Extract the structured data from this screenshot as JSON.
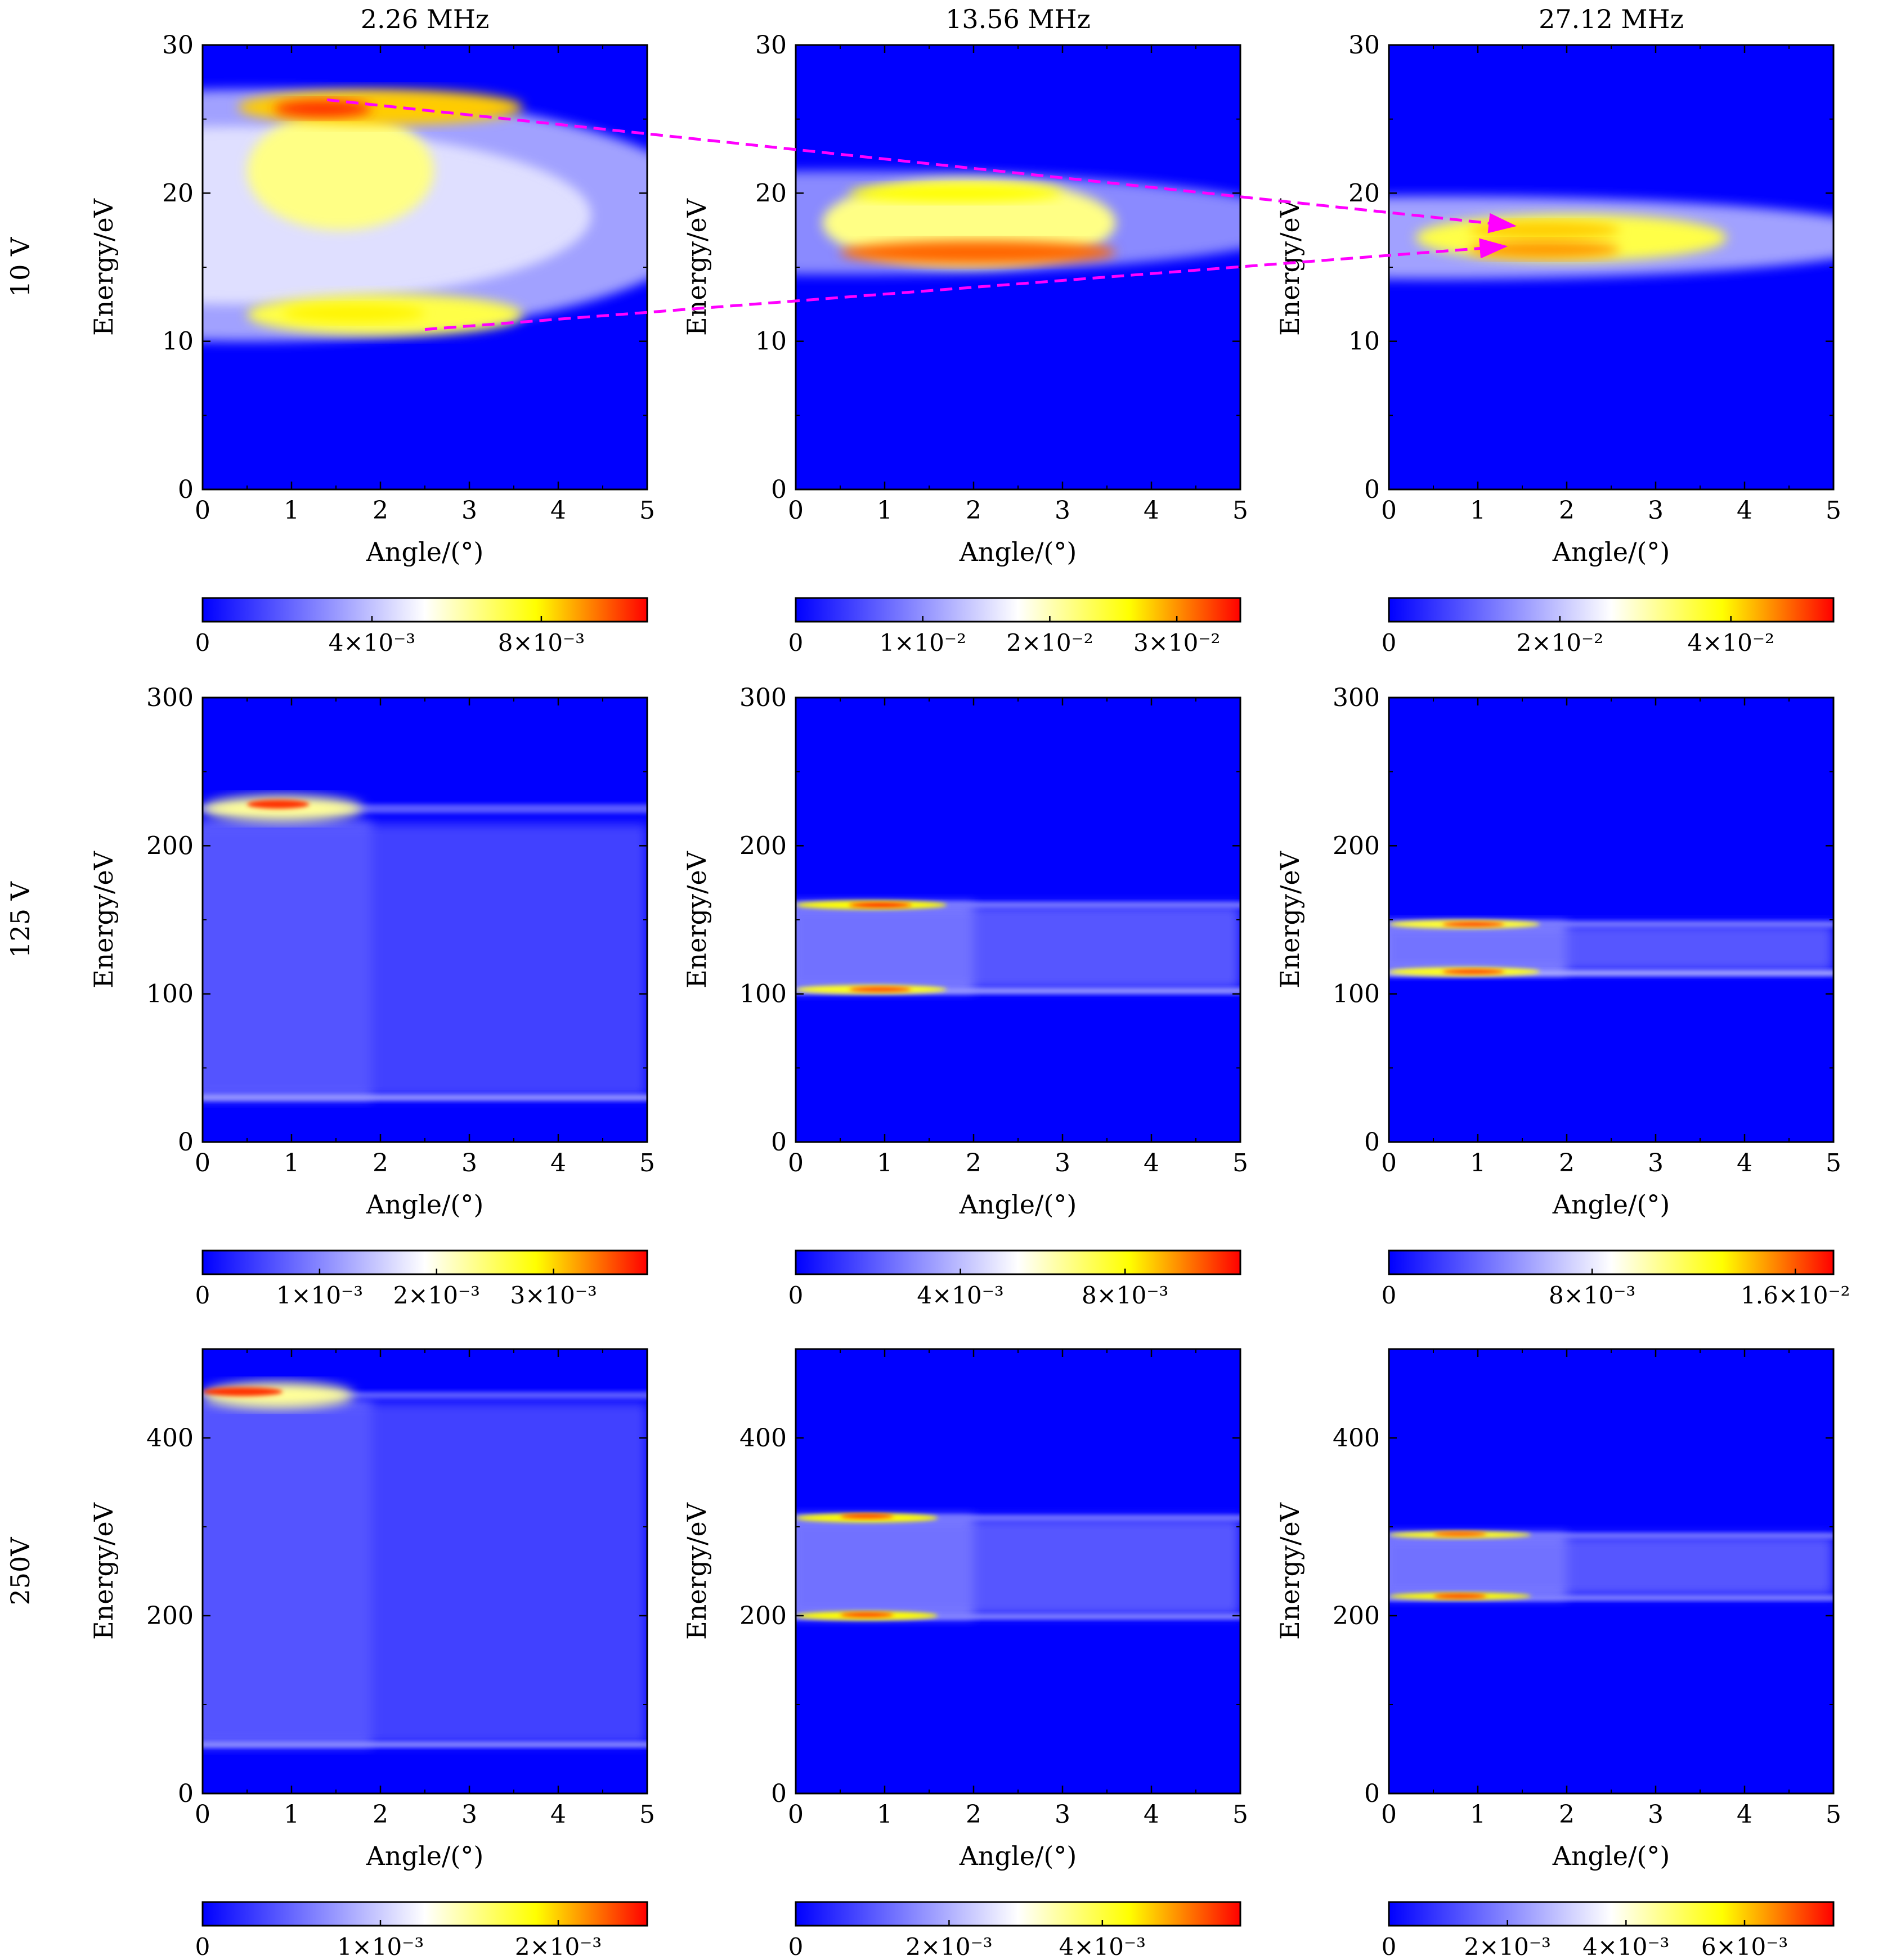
{
  "columns": [
    "2.26 MHz",
    "13.56 MHz",
    "27.12 MHz"
  ],
  "rows": [
    "10 V",
    "125 V",
    "250V"
  ],
  "colors": {
    "low": "#0000ff",
    "mid": "#ffffff",
    "high_mid": "#ffff00",
    "high": "#ff0000",
    "arrow": "#ff00ff"
  },
  "chart_data": [
    {
      "type": "heatmap",
      "title": "2.26 MHz",
      "xlabel": "Angle/(°)",
      "ylabel": "Energy/eV",
      "xlim": [
        0,
        5
      ],
      "ylim": [
        0,
        30
      ],
      "xticks": [
        "0",
        "1",
        "2",
        "3",
        "4",
        "5"
      ],
      "yticks": [
        "0",
        "10",
        "20",
        "30"
      ],
      "colorbar": {
        "max": 0.0105,
        "ticks": [
          {
            "v": 0,
            "label": "0"
          },
          {
            "v": 0.004,
            "label": "4×10⁻³"
          },
          {
            "v": 0.008,
            "label": "8×10⁻³"
          }
        ]
      },
      "features": [
        {
          "kind": "halo",
          "y": 18.5,
          "y_half": 8.5,
          "x_extent": 5.0,
          "level": 0.35
        },
        {
          "kind": "halo",
          "y": 18.5,
          "y_half": 6.0,
          "x_extent": 3.8,
          "level": 0.45
        },
        {
          "kind": "blob",
          "x0": 0.5,
          "x1": 2.6,
          "y": 21.5,
          "y_half": 4.0,
          "level": 0.62
        },
        {
          "kind": "blob",
          "x0": 0.4,
          "x1": 3.6,
          "y": 25.8,
          "y_half": 1.2,
          "level": 0.8
        },
        {
          "kind": "blob",
          "x0": 0.8,
          "x1": 1.9,
          "y": 25.7,
          "y_half": 0.6,
          "level": 0.95
        },
        {
          "kind": "blob",
          "x0": 0.5,
          "x1": 3.6,
          "y": 11.8,
          "y_half": 1.4,
          "level": 0.68
        },
        {
          "kind": "blob",
          "x0": 0.9,
          "x1": 2.5,
          "y": 11.9,
          "y_half": 0.6,
          "level": 0.76
        }
      ]
    },
    {
      "type": "heatmap",
      "title": "13.56 MHz",
      "xlabel": "Angle/(°)",
      "ylabel": "Energy/eV",
      "xlim": [
        0,
        5
      ],
      "ylim": [
        0,
        30
      ],
      "xticks": [
        "0",
        "1",
        "2",
        "3",
        "4",
        "5"
      ],
      "yticks": [
        "0",
        "10",
        "20",
        "30"
      ],
      "colorbar": {
        "max": 0.035,
        "ticks": [
          {
            "v": 0,
            "label": "0"
          },
          {
            "v": 0.01,
            "label": "1×10⁻²"
          },
          {
            "v": 0.02,
            "label": "2×10⁻²"
          },
          {
            "v": 0.03,
            "label": "3×10⁻²"
          }
        ]
      },
      "features": [
        {
          "kind": "halo",
          "y": 18.0,
          "y_half": 3.5,
          "x_extent": 5.0,
          "level": 0.3
        },
        {
          "kind": "blob",
          "x0": 0.3,
          "x1": 3.6,
          "y": 18.0,
          "y_half": 3.0,
          "level": 0.62
        },
        {
          "kind": "blob",
          "x0": 0.6,
          "x1": 3.0,
          "y": 20.0,
          "y_half": 0.6,
          "level": 0.75
        },
        {
          "kind": "blob",
          "x0": 0.5,
          "x1": 3.6,
          "y": 16.0,
          "y_half": 0.8,
          "level": 0.9
        }
      ]
    },
    {
      "type": "heatmap",
      "title": "27.12 MHz",
      "xlabel": "Angle/(°)",
      "ylabel": "Energy/eV",
      "xlim": [
        0,
        5
      ],
      "ylim": [
        0,
        30
      ],
      "xticks": [
        "0",
        "1",
        "2",
        "3",
        "4",
        "5"
      ],
      "yticks": [
        "0",
        "10",
        "20",
        "30"
      ],
      "colorbar": {
        "max": 0.052,
        "ticks": [
          {
            "v": 0,
            "label": "0"
          },
          {
            "v": 0.02,
            "label": "2×10⁻²"
          },
          {
            "v": 0.04,
            "label": "4×10⁻²"
          }
        ]
      },
      "features": [
        {
          "kind": "halo",
          "y": 17.0,
          "y_half": 2.8,
          "x_extent": 5.0,
          "level": 0.35
        },
        {
          "kind": "blob",
          "x0": 0.3,
          "x1": 3.8,
          "y": 17.0,
          "y_half": 1.6,
          "level": 0.68
        },
        {
          "kind": "blob",
          "x0": 0.9,
          "x1": 2.6,
          "y": 17.5,
          "y_half": 0.6,
          "level": 0.8
        },
        {
          "kind": "blob",
          "x0": 0.9,
          "x1": 2.6,
          "y": 16.2,
          "y_half": 0.6,
          "level": 0.85
        }
      ]
    },
    {
      "type": "heatmap",
      "title": "",
      "xlabel": "Angle/(°)",
      "ylabel": "Energy/eV",
      "xlim": [
        0,
        5
      ],
      "ylim": [
        0,
        300
      ],
      "xticks": [
        "0",
        "1",
        "2",
        "3",
        "4",
        "5"
      ],
      "yticks": [
        "0",
        "100",
        "200",
        "300"
      ],
      "colorbar": {
        "max": 0.0038,
        "ticks": [
          {
            "v": 0,
            "label": "0"
          },
          {
            "v": 0.001,
            "label": "1×10⁻³"
          },
          {
            "v": 0.002,
            "label": "2×10⁻³"
          },
          {
            "v": 0.003,
            "label": "3×10⁻³"
          }
        ]
      },
      "features": [
        {
          "kind": "band",
          "y0": 30,
          "y1": 215,
          "x_extent": 1.9,
          "level": 0.3
        },
        {
          "kind": "band",
          "y0": 30,
          "y1": 215,
          "x_extent": 5.0,
          "level": 0.15
        },
        {
          "kind": "line",
          "y": 30,
          "y_half": 2,
          "x_extent": 5.0,
          "level": 0.32
        },
        {
          "kind": "line",
          "y": 225,
          "y_half": 3,
          "x_extent": 5.0,
          "level": 0.2
        },
        {
          "kind": "blob",
          "x0": 0.0,
          "x1": 1.8,
          "y": 225,
          "y_half": 9,
          "level": 0.6
        },
        {
          "kind": "blob",
          "x0": 0.5,
          "x1": 1.2,
          "y": 228,
          "y_half": 3,
          "level": 0.95
        }
      ]
    },
    {
      "type": "heatmap",
      "title": "",
      "xlabel": "Angle/(°)",
      "ylabel": "Energy/eV",
      "xlim": [
        0,
        5
      ],
      "ylim": [
        0,
        300
      ],
      "xticks": [
        "0",
        "1",
        "2",
        "3",
        "4",
        "5"
      ],
      "yticks": [
        "0",
        "100",
        "200",
        "300"
      ],
      "colorbar": {
        "max": 0.0108,
        "ticks": [
          {
            "v": 0,
            "label": "0"
          },
          {
            "v": 0.004,
            "label": "4×10⁻³"
          },
          {
            "v": 0.008,
            "label": "8×10⁻³"
          }
        ]
      },
      "features": [
        {
          "kind": "band",
          "y0": 103,
          "y1": 160,
          "x_extent": 2.0,
          "level": 0.42
        },
        {
          "kind": "band",
          "y0": 103,
          "y1": 160,
          "x_extent": 5.0,
          "level": 0.2
        },
        {
          "kind": "line",
          "y": 160,
          "y_half": 2,
          "x_extent": 5.0,
          "level": 0.25
        },
        {
          "kind": "line",
          "y": 102,
          "y_half": 2,
          "x_extent": 5.0,
          "level": 0.32
        },
        {
          "kind": "blob",
          "x0": 0.0,
          "x1": 1.7,
          "y": 160,
          "y_half": 3,
          "level": 0.75
        },
        {
          "kind": "blob",
          "x0": 0.0,
          "x1": 1.7,
          "y": 103,
          "y_half": 3,
          "level": 0.72
        },
        {
          "kind": "blob",
          "x0": 0.6,
          "x1": 1.3,
          "y": 160,
          "y_half": 1.5,
          "level": 0.98
        },
        {
          "kind": "blob",
          "x0": 0.6,
          "x1": 1.3,
          "y": 103,
          "y_half": 1.5,
          "level": 0.95
        }
      ]
    },
    {
      "type": "heatmap",
      "title": "",
      "xlabel": "Angle/(°)",
      "ylabel": "Energy/eV",
      "xlim": [
        0,
        5
      ],
      "ylim": [
        0,
        300
      ],
      "xticks": [
        "0",
        "1",
        "2",
        "3",
        "4",
        "5"
      ],
      "yticks": [
        "0",
        "100",
        "200",
        "300"
      ],
      "colorbar": {
        "max": 0.0175,
        "ticks": [
          {
            "v": 0,
            "label": "0"
          },
          {
            "v": 0.008,
            "label": "8×10⁻³"
          },
          {
            "v": 0.016,
            "label": "1.6×10⁻²"
          }
        ]
      },
      "features": [
        {
          "kind": "band",
          "y0": 115,
          "y1": 147,
          "x_extent": 2.0,
          "level": 0.45
        },
        {
          "kind": "band",
          "y0": 115,
          "y1": 147,
          "x_extent": 5.0,
          "level": 0.2
        },
        {
          "kind": "line",
          "y": 147,
          "y_half": 2,
          "x_extent": 5.0,
          "level": 0.25
        },
        {
          "kind": "line",
          "y": 114,
          "y_half": 2,
          "x_extent": 5.0,
          "level": 0.35
        },
        {
          "kind": "blob",
          "x0": 0.0,
          "x1": 1.7,
          "y": 147,
          "y_half": 3,
          "level": 0.7
        },
        {
          "kind": "blob",
          "x0": 0.0,
          "x1": 1.7,
          "y": 115,
          "y_half": 3,
          "level": 0.72
        },
        {
          "kind": "blob",
          "x0": 0.6,
          "x1": 1.3,
          "y": 147,
          "y_half": 1.5,
          "level": 0.95
        },
        {
          "kind": "blob",
          "x0": 0.6,
          "x1": 1.3,
          "y": 115,
          "y_half": 1.5,
          "level": 0.95
        }
      ]
    },
    {
      "type": "heatmap",
      "title": "",
      "xlabel": "Angle/(°)",
      "ylabel": "Energy/eV",
      "xlim": [
        0,
        5
      ],
      "ylim": [
        0,
        500
      ],
      "xticks": [
        "0",
        "1",
        "2",
        "3",
        "4",
        "5"
      ],
      "yticks": [
        "0",
        "200",
        "400"
      ],
      "colorbar": {
        "max": 0.0025,
        "ticks": [
          {
            "v": 0,
            "label": "0"
          },
          {
            "v": 0.001,
            "label": "1×10⁻³"
          },
          {
            "v": 0.002,
            "label": "2×10⁻³"
          }
        ]
      },
      "features": [
        {
          "kind": "band",
          "y0": 55,
          "y1": 440,
          "x_extent": 1.9,
          "level": 0.3
        },
        {
          "kind": "band",
          "y0": 55,
          "y1": 440,
          "x_extent": 5.0,
          "level": 0.15
        },
        {
          "kind": "line",
          "y": 55,
          "y_half": 3,
          "x_extent": 5.0,
          "level": 0.3
        },
        {
          "kind": "line",
          "y": 448,
          "y_half": 4,
          "x_extent": 5.0,
          "level": 0.2
        },
        {
          "kind": "blob",
          "x0": 0.0,
          "x1": 1.7,
          "y": 448,
          "y_half": 15,
          "level": 0.6
        },
        {
          "kind": "blob",
          "x0": 0.0,
          "x1": 0.9,
          "y": 452,
          "y_half": 5,
          "level": 0.95
        }
      ]
    },
    {
      "type": "heatmap",
      "title": "",
      "xlabel": "Angle/(°)",
      "ylabel": "Energy/eV",
      "xlim": [
        0,
        5
      ],
      "ylim": [
        0,
        500
      ],
      "xticks": [
        "0",
        "1",
        "2",
        "3",
        "4",
        "5"
      ],
      "yticks": [
        "0",
        "200",
        "400"
      ],
      "colorbar": {
        "max": 0.0058,
        "ticks": [
          {
            "v": 0,
            "label": "0"
          },
          {
            "v": 0.002,
            "label": "2×10⁻³"
          },
          {
            "v": 0.004,
            "label": "4×10⁻³"
          }
        ]
      },
      "features": [
        {
          "kind": "band",
          "y0": 200,
          "y1": 310,
          "x_extent": 2.0,
          "level": 0.42
        },
        {
          "kind": "band",
          "y0": 200,
          "y1": 310,
          "x_extent": 5.0,
          "level": 0.2
        },
        {
          "kind": "line",
          "y": 310,
          "y_half": 3,
          "x_extent": 5.0,
          "level": 0.25
        },
        {
          "kind": "line",
          "y": 199,
          "y_half": 3,
          "x_extent": 5.0,
          "level": 0.28
        },
        {
          "kind": "blob",
          "x0": 0.0,
          "x1": 1.6,
          "y": 310,
          "y_half": 5,
          "level": 0.75
        },
        {
          "kind": "blob",
          "x0": 0.0,
          "x1": 1.6,
          "y": 200,
          "y_half": 5,
          "level": 0.75
        },
        {
          "kind": "blob",
          "x0": 0.5,
          "x1": 1.1,
          "y": 312,
          "y_half": 2,
          "level": 0.95
        },
        {
          "kind": "blob",
          "x0": 0.5,
          "x1": 1.1,
          "y": 201,
          "y_half": 2,
          "level": 0.95
        }
      ]
    },
    {
      "type": "heatmap",
      "title": "",
      "xlabel": "Angle/(°)",
      "ylabel": "Energy/eV",
      "xlim": [
        0,
        5
      ],
      "ylim": [
        0,
        500
      ],
      "xticks": [
        "0",
        "1",
        "2",
        "3",
        "4",
        "5"
      ],
      "yticks": [
        "0",
        "200",
        "400"
      ],
      "colorbar": {
        "max": 0.0075,
        "ticks": [
          {
            "v": 0,
            "label": "0"
          },
          {
            "v": 0.002,
            "label": "2×10⁻³"
          },
          {
            "v": 0.004,
            "label": "4×10⁻³"
          },
          {
            "v": 0.006,
            "label": "6×10⁻³"
          }
        ]
      },
      "features": [
        {
          "kind": "band",
          "y0": 222,
          "y1": 290,
          "x_extent": 2.0,
          "level": 0.42
        },
        {
          "kind": "band",
          "y0": 222,
          "y1": 290,
          "x_extent": 5.0,
          "level": 0.2
        },
        {
          "kind": "line",
          "y": 290,
          "y_half": 3,
          "x_extent": 5.0,
          "level": 0.25
        },
        {
          "kind": "line",
          "y": 220,
          "y_half": 3,
          "x_extent": 5.0,
          "level": 0.28
        },
        {
          "kind": "blob",
          "x0": 0.0,
          "x1": 1.6,
          "y": 291,
          "y_half": 4,
          "level": 0.72
        },
        {
          "kind": "blob",
          "x0": 0.0,
          "x1": 1.6,
          "y": 222,
          "y_half": 4,
          "level": 0.75
        },
        {
          "kind": "blob",
          "x0": 0.5,
          "x1": 1.1,
          "y": 292,
          "y_half": 2,
          "level": 0.92
        },
        {
          "kind": "blob",
          "x0": 0.5,
          "x1": 1.1,
          "y": 222,
          "y_half": 2,
          "level": 0.95
        }
      ]
    }
  ],
  "arrows": [
    {
      "from": {
        "panel": 0,
        "x": 1.4,
        "y": 26.3
      },
      "to": {
        "panel": 2,
        "x": 1.4,
        "y": 17.8
      }
    },
    {
      "from": {
        "panel": 0,
        "x": 2.5,
        "y": 10.8
      },
      "to": {
        "panel": 2,
        "x": 1.3,
        "y": 16.4
      }
    }
  ]
}
